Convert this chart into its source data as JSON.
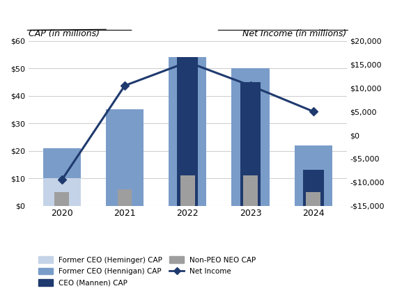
{
  "years": [
    2020,
    2021,
    2022,
    2023,
    2024
  ],
  "former_ceo_heminger": [
    10,
    0,
    0,
    0,
    0
  ],
  "former_ceo_hennigan": [
    21,
    35,
    54,
    50,
    22
  ],
  "ceo_mannen": [
    0,
    0,
    54,
    45,
    13
  ],
  "non_peo_neo": [
    5,
    6,
    11,
    11,
    5
  ],
  "net_income": [
    -9500,
    10500,
    15500,
    10500,
    5000
  ],
  "bar_width": 0.6,
  "color_heminger": "#c5d3e8",
  "color_hennigan": "#7a9cc9",
  "color_mannen": "#1f3a6e",
  "color_neo": "#9e9e9e",
  "color_net_income": "#1f3a6e",
  "left_ylabel": "CAP (in millions)",
  "right_ylabel": "Net Income (in millions)",
  "ylim_left": [
    0,
    60
  ],
  "ylim_right": [
    -15000,
    20000
  ],
  "yticks_left": [
    0,
    10,
    20,
    30,
    40,
    50,
    60
  ],
  "ytick_labels_left": [
    "$0",
    "$10",
    "$20",
    "$30",
    "$40",
    "$50",
    "$60"
  ],
  "yticks_right": [
    -15000,
    -10000,
    -5000,
    0,
    5000,
    10000,
    15000,
    20000
  ],
  "ytick_labels_right": [
    "-$15,000",
    "-$10,000",
    "-$5,000",
    "$0",
    "$5,000",
    "$10,000",
    "$15,000",
    "$20,000"
  ],
  "legend_labels": [
    "Former CEO (Heminger) CAP",
    "Former CEO (Hennigan) CAP",
    "CEO (Mannen) CAP",
    "Non-PEO NEO CAP",
    "Net Income"
  ],
  "background_color": "#ffffff",
  "grid_color": "#d0d0d0"
}
